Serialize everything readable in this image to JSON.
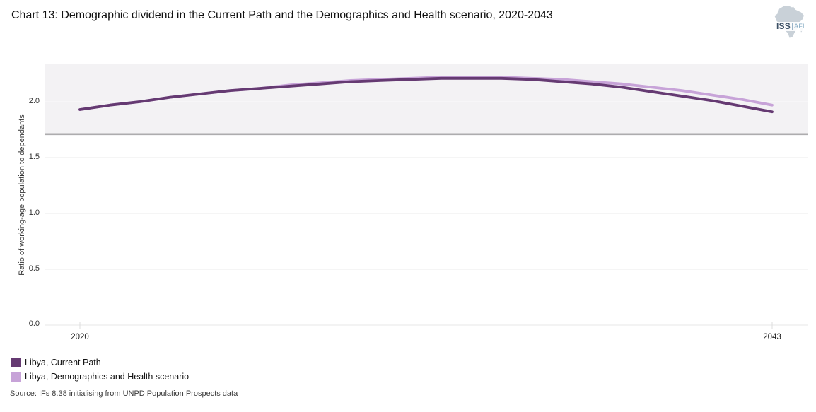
{
  "page": {
    "title": "Chart 13: Demographic dividend in the Current Path and the Demographics and Health scenario, 2020-2043"
  },
  "logo": {
    "iss": "ISS",
    "afi": "AFI",
    "africa_fill": "#c9d1d8"
  },
  "chart_data": {
    "type": "line",
    "title": "Chart 13: Demographic dividend in the Current Path and the Demographics and Health scenario, 2020-2043",
    "xlabel": "",
    "ylabel": "Ratio of working-age population to dependants",
    "x": [
      2020,
      2021,
      2022,
      2023,
      2024,
      2025,
      2026,
      2027,
      2028,
      2029,
      2030,
      2031,
      2032,
      2033,
      2034,
      2035,
      2036,
      2037,
      2038,
      2039,
      2040,
      2041,
      2042,
      2043
    ],
    "series": [
      {
        "name": "Libya, Current Path",
        "color": "#653a72",
        "values": [
          1.93,
          1.97,
          2.0,
          2.04,
          2.07,
          2.1,
          2.12,
          2.14,
          2.16,
          2.18,
          2.19,
          2.2,
          2.21,
          2.21,
          2.21,
          2.2,
          2.18,
          2.16,
          2.13,
          2.09,
          2.05,
          2.01,
          1.96,
          1.91
        ]
      },
      {
        "name": "Libya, Demographics and Health scenario",
        "color": "#c7a3d8",
        "values": [
          1.93,
          1.97,
          2.0,
          2.04,
          2.07,
          2.1,
          2.12,
          2.15,
          2.17,
          2.19,
          2.2,
          2.21,
          2.22,
          2.22,
          2.22,
          2.21,
          2.2,
          2.18,
          2.16,
          2.13,
          2.1,
          2.06,
          2.02,
          1.97
        ]
      }
    ],
    "ylim": [
      0,
      2.335
    ],
    "yticks": [
      0.0,
      0.5,
      1.0,
      1.5,
      2.0
    ],
    "ytick_labels": [
      "0.0",
      "0.5",
      "1.0",
      "1.5",
      "2.0"
    ],
    "xtick_labels": [
      "2020",
      "2043"
    ],
    "grid": "horizontal",
    "gridline_color": "#ebebeb",
    "reference_band": {
      "from": 1.71,
      "to": 2.335,
      "fill": "#f3f2f4",
      "edge_color": "#adacae"
    },
    "legend_position": "bottom-left"
  },
  "legend": {
    "items": [
      {
        "label": "Libya, Current Path",
        "color": "#653a72"
      },
      {
        "label": "Libya, Demographics and Health scenario",
        "color": "#c7a3d8"
      }
    ]
  },
  "source": {
    "text": "Source: IFs 8.38 initialising from UNPD Population Prospects data"
  }
}
